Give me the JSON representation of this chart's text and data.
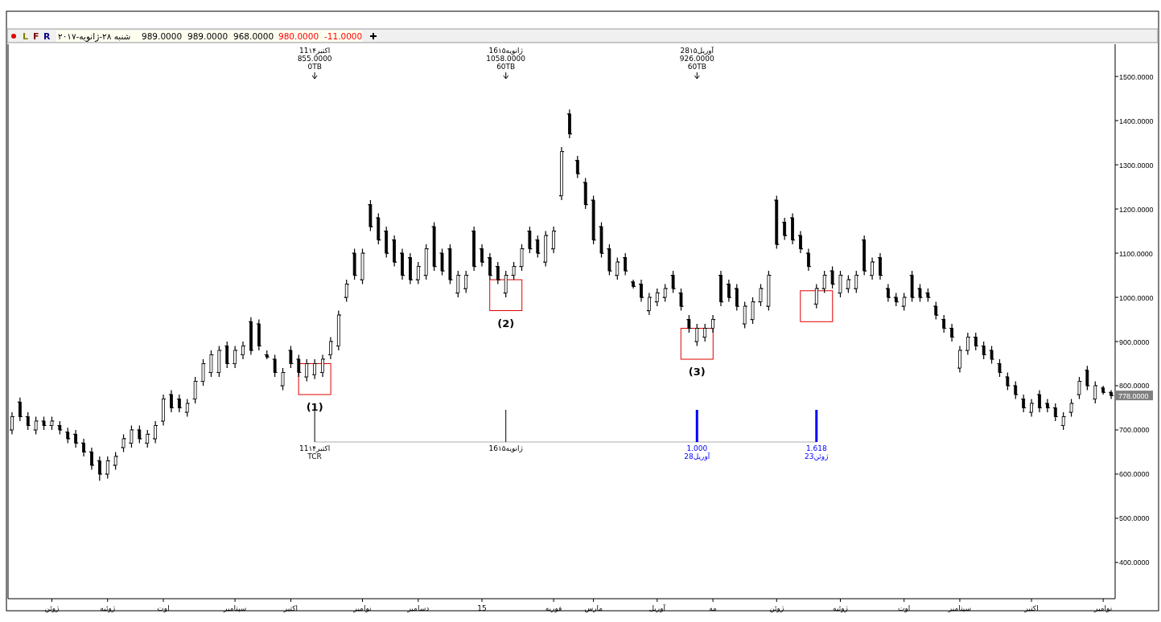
{
  "chart_data": {
    "type": "candlestick",
    "categories": [
      null,
      null,
      null,
      null,
      null,
      "ژوئن",
      null,
      null,
      null,
      null,
      null,
      null,
      "ژوئیه",
      null,
      null,
      null,
      null,
      null,
      null,
      "اوت",
      null,
      null,
      null,
      null,
      null,
      null,
      null,
      null,
      "سپتامبر",
      null,
      null,
      null,
      null,
      null,
      null,
      "اکتبر",
      null,
      null,
      null,
      null,
      null,
      null,
      null,
      null,
      "نوامبر",
      null,
      null,
      null,
      null,
      null,
      null,
      "دسامبر",
      null,
      null,
      null,
      null,
      null,
      null,
      null,
      "15",
      null,
      null,
      null,
      null,
      null,
      null,
      null,
      null,
      "فوریه",
      null,
      null,
      null,
      null,
      "مارس",
      null,
      null,
      null,
      null,
      null,
      null,
      null,
      "آوریل",
      null,
      null,
      null,
      null,
      null,
      null,
      "مه",
      null,
      null,
      null,
      null,
      null,
      null,
      null,
      "ژوئن",
      null,
      null,
      null,
      null,
      null,
      null,
      null,
      "ژوئیه",
      null,
      null,
      null,
      null,
      null,
      null,
      null,
      "اوت",
      null,
      null,
      null,
      null,
      null,
      null,
      "سپتامبر",
      null,
      null,
      null,
      null,
      null,
      null,
      null,
      null,
      "اکتبر",
      null,
      null,
      null,
      null,
      null,
      null,
      null,
      null,
      "نوامبر",
      null
    ],
    "ohlc": [
      [
        700,
        740,
        690,
        730
      ],
      [
        763,
        773,
        720,
        730
      ],
      [
        730,
        740,
        700,
        710
      ],
      [
        700,
        730,
        690,
        720
      ],
      [
        720,
        730,
        700,
        710
      ],
      [
        710,
        730,
        700,
        720
      ],
      [
        710,
        720,
        690,
        700
      ],
      [
        695,
        705,
        670,
        680
      ],
      [
        690,
        700,
        660,
        670
      ],
      [
        670,
        680,
        640,
        650
      ],
      [
        650,
        660,
        610,
        620
      ],
      [
        630,
        640,
        585,
        600
      ],
      [
        600,
        640,
        590,
        630
      ],
      [
        620,
        650,
        610,
        640
      ],
      [
        660,
        690,
        650,
        680
      ],
      [
        670,
        710,
        660,
        700
      ],
      [
        700,
        710,
        670,
        680
      ],
      [
        670,
        700,
        660,
        690
      ],
      [
        680,
        720,
        670,
        710
      ],
      [
        720,
        780,
        710,
        770
      ],
      [
        780,
        790,
        740,
        750
      ],
      [
        770,
        780,
        740,
        750
      ],
      [
        740,
        770,
        730,
        760
      ],
      [
        770,
        820,
        760,
        810
      ],
      [
        810,
        860,
        800,
        850
      ],
      [
        830,
        880,
        820,
        870
      ],
      [
        830,
        890,
        820,
        880
      ],
      [
        890,
        900,
        840,
        850
      ],
      [
        850,
        890,
        840,
        880
      ],
      [
        870,
        900,
        860,
        890
      ],
      [
        945,
        955,
        870,
        880
      ],
      [
        940,
        950,
        880,
        890
      ],
      [
        870,
        880,
        860,
        865
      ],
      [
        860,
        870,
        820,
        830
      ],
      [
        800,
        840,
        790,
        830
      ],
      [
        880,
        890,
        840,
        850
      ],
      [
        860,
        870,
        820,
        830
      ],
      [
        820,
        860,
        810,
        850
      ],
      [
        825,
        860,
        815,
        850
      ],
      [
        830,
        870,
        820,
        860
      ],
      [
        870,
        910,
        860,
        900
      ],
      [
        890,
        970,
        880,
        960
      ],
      [
        1000,
        1040,
        990,
        1030
      ],
      [
        1100,
        1110,
        1040,
        1050
      ],
      [
        1040,
        1110,
        1030,
        1100
      ],
      [
        1210,
        1220,
        1150,
        1160
      ],
      [
        1180,
        1190,
        1120,
        1130
      ],
      [
        1150,
        1160,
        1090,
        1100
      ],
      [
        1130,
        1140,
        1070,
        1080
      ],
      [
        1100,
        1110,
        1040,
        1050
      ],
      [
        1090,
        1100,
        1030,
        1040
      ],
      [
        1040,
        1080,
        1030,
        1070
      ],
      [
        1050,
        1120,
        1040,
        1110
      ],
      [
        1160,
        1170,
        1060,
        1070
      ],
      [
        1100,
        1110,
        1050,
        1060
      ],
      [
        1110,
        1120,
        1030,
        1040
      ],
      [
        1010,
        1060,
        1000,
        1050
      ],
      [
        1020,
        1060,
        1010,
        1050
      ],
      [
        1150,
        1160,
        1060,
        1070
      ],
      [
        1110,
        1120,
        1070,
        1080
      ],
      [
        1090,
        1100,
        1040,
        1050
      ],
      [
        1070,
        1080,
        1030,
        1040
      ],
      [
        1010,
        1060,
        1000,
        1050
      ],
      [
        1050,
        1080,
        1040,
        1070
      ],
      [
        1070,
        1120,
        1060,
        1110
      ],
      [
        1150,
        1160,
        1100,
        1110
      ],
      [
        1130,
        1140,
        1090,
        1100
      ],
      [
        1080,
        1150,
        1070,
        1140
      ],
      [
        1110,
        1160,
        1100,
        1150
      ],
      [
        1230,
        1340,
        1220,
        1330
      ],
      [
        1415,
        1425,
        1360,
        1370
      ],
      [
        1310,
        1320,
        1270,
        1280
      ],
      [
        1260,
        1270,
        1200,
        1210
      ],
      [
        1220,
        1230,
        1120,
        1130
      ],
      [
        1160,
        1170,
        1090,
        1100
      ],
      [
        1110,
        1120,
        1050,
        1060
      ],
      [
        1050,
        1090,
        1040,
        1080
      ],
      [
        1090,
        1100,
        1050,
        1060
      ],
      [
        1035,
        1040,
        1020,
        1025
      ],
      [
        1030,
        1040,
        990,
        1000
      ],
      [
        970,
        1010,
        960,
        1000
      ],
      [
        990,
        1020,
        980,
        1010
      ],
      [
        1000,
        1030,
        990,
        1020
      ],
      [
        1050,
        1060,
        1010,
        1020
      ],
      [
        1010,
        1020,
        970,
        980
      ],
      [
        950,
        960,
        920,
        930
      ],
      [
        900,
        940,
        890,
        930
      ],
      [
        910,
        940,
        900,
        930
      ],
      [
        930,
        960,
        920,
        950
      ],
      [
        1050,
        1060,
        980,
        990
      ],
      [
        1030,
        1040,
        990,
        1000
      ],
      [
        1020,
        1030,
        970,
        980
      ],
      [
        940,
        990,
        930,
        980
      ],
      [
        950,
        1000,
        940,
        990
      ],
      [
        990,
        1030,
        980,
        1020
      ],
      [
        980,
        1060,
        970,
        1050
      ],
      [
        1220,
        1230,
        1110,
        1120
      ],
      [
        1170,
        1180,
        1130,
        1140
      ],
      [
        1180,
        1190,
        1120,
        1130
      ],
      [
        1140,
        1150,
        1100,
        1110
      ],
      [
        1100,
        1110,
        1060,
        1070
      ],
      [
        985,
        1030,
        975,
        1020
      ],
      [
        1020,
        1060,
        1010,
        1050
      ],
      [
        1060,
        1070,
        1020,
        1030
      ],
      [
        1010,
        1060,
        1000,
        1050
      ],
      [
        1020,
        1050,
        1010,
        1040
      ],
      [
        1020,
        1060,
        1010,
        1050
      ],
      [
        1130,
        1140,
        1050,
        1060
      ],
      [
        1050,
        1090,
        1040,
        1080
      ],
      [
        1090,
        1100,
        1040,
        1050
      ],
      [
        1020,
        1030,
        990,
        1000
      ],
      [
        1000,
        1010,
        980,
        990
      ],
      [
        980,
        1010,
        970,
        1000
      ],
      [
        1050,
        1060,
        990,
        1000
      ],
      [
        1020,
        1030,
        990,
        1000
      ],
      [
        1010,
        1020,
        990,
        1000
      ],
      [
        980,
        990,
        950,
        960
      ],
      [
        950,
        960,
        920,
        930
      ],
      [
        930,
        940,
        900,
        910
      ],
      [
        840,
        890,
        830,
        880
      ],
      [
        880,
        920,
        870,
        910
      ],
      [
        910,
        920,
        880,
        890
      ],
      [
        890,
        900,
        860,
        870
      ],
      [
        880,
        890,
        850,
        860
      ],
      [
        850,
        860,
        820,
        830
      ],
      [
        820,
        830,
        790,
        800
      ],
      [
        800,
        810,
        770,
        780
      ],
      [
        770,
        780,
        740,
        750
      ],
      [
        740,
        770,
        730,
        760
      ],
      [
        780,
        790,
        740,
        750
      ],
      [
        760,
        770,
        740,
        750
      ],
      [
        750,
        760,
        720,
        730
      ],
      [
        710,
        740,
        700,
        730
      ],
      [
        740,
        770,
        730,
        760
      ],
      [
        780,
        820,
        770,
        810
      ],
      [
        835,
        845,
        790,
        800
      ],
      [
        770,
        810,
        760,
        800
      ],
      [
        795,
        800,
        780,
        785
      ],
      [
        785,
        790,
        770,
        778
      ]
    ],
    "ylim": [
      318,
      1573
    ],
    "yticks": [
      {
        "value": 400,
        "label": "400.0000"
      },
      {
        "value": 500,
        "label": "500.0000"
      },
      {
        "value": 600,
        "label": "600.0000"
      },
      {
        "value": 700,
        "label": "700.0000"
      },
      {
        "value": 800,
        "label": "800.0000"
      },
      {
        "value": 900,
        "label": "900.0000"
      },
      {
        "value": 1000,
        "label": "1000.0000"
      },
      {
        "value": 1100,
        "label": "1100.0000"
      },
      {
        "value": 1200,
        "label": "1200.0000"
      },
      {
        "value": 1300,
        "label": "1300.0000"
      },
      {
        "value": 1400,
        "label": "1400.0000"
      },
      {
        "value": 1500,
        "label": "1500.0000"
      }
    ],
    "annotations": [
      "L",
      "F",
      "R",
      "شنبه ۲۸-ژانویه-۲۰۱۷",
      "989.0000",
      "989.0000",
      "968.0000",
      "980.0000",
      "-11.0000",
      "11اکتبر۱۴",
      "855.0000",
      "0TB",
      "16ژانویه۱۵",
      "1058.0000",
      "60TB",
      "28آوریل۱۵",
      "926.0000",
      "60TB",
      "(1)",
      "(2)",
      "(3)",
      "11اکتبر۱۴",
      "TCR",
      "16ژانویه۱۵",
      "1.000",
      "28آوریل",
      "1.618",
      "23ژوئن",
      "778.0000"
    ]
  }
}
